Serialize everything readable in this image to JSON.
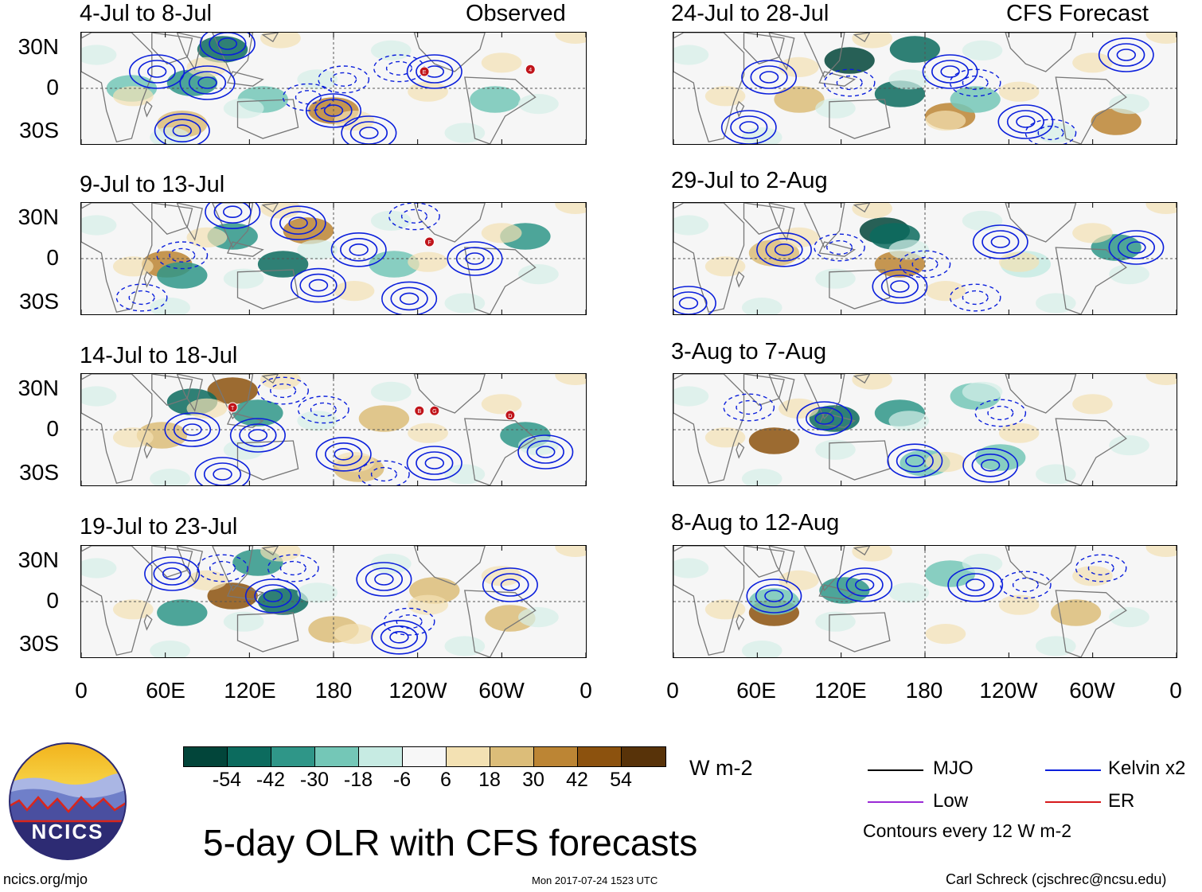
{
  "panels_left": [
    {
      "title": "4-Jul to 8-Jul",
      "tag": "Observed"
    },
    {
      "title": "9-Jul to 13-Jul",
      "tag": ""
    },
    {
      "title": "14-Jul to 18-Jul",
      "tag": ""
    },
    {
      "title": "19-Jul to 23-Jul",
      "tag": ""
    }
  ],
  "panels_right": [
    {
      "title": "24-Jul to 28-Jul",
      "tag": "CFS Forecast"
    },
    {
      "title": "29-Jul to 2-Aug",
      "tag": ""
    },
    {
      "title": "3-Aug to 7-Aug",
      "tag": ""
    },
    {
      "title": "8-Aug to 12-Aug",
      "tag": ""
    }
  ],
  "y_ticks": [
    "30N",
    "0",
    "30S"
  ],
  "x_ticks": [
    "0",
    "60E",
    "120E",
    "180",
    "120W",
    "60W",
    "0"
  ],
  "storm_markers": [
    {
      "panel": 0,
      "letter": "E"
    },
    {
      "panel": 0,
      "letter": "4"
    },
    {
      "panel": 1,
      "letter": "F"
    },
    {
      "panel": 2,
      "letter": "T"
    },
    {
      "panel": 2,
      "letter": "B"
    },
    {
      "panel": 2,
      "letter": "G"
    },
    {
      "panel": 2,
      "letter": "D"
    }
  ],
  "colorbar": {
    "colors": [
      "#02453a",
      "#0c6b5e",
      "#2f9688",
      "#74c7b7",
      "#c7ebe3",
      "#f7f7f7",
      "#f3e1b3",
      "#dcbd79",
      "#bc8534",
      "#8c520e",
      "#583309"
    ],
    "labels": [
      "-54",
      "-42",
      "-30",
      "-18",
      "-6",
      "6",
      "18",
      "30",
      "42",
      "54"
    ],
    "units": "W m-2"
  },
  "legend": {
    "items": [
      {
        "label": "MJO",
        "color": "#000000"
      },
      {
        "label": "Kelvin x2",
        "color": "#0b1fdc"
      },
      {
        "label": "Low",
        "color": "#9a2bd6"
      },
      {
        "label": "ER",
        "color": "#d7191c"
      }
    ],
    "note": "Contours every 12 W m-2"
  },
  "logo_text": "NCICS",
  "main_title": "5-day OLR with CFS forecasts",
  "footer_left": "ncics.org/mjo",
  "footer_center": "Mon 2017-07-24 1523 UTC",
  "footer_right": "Carl Schreck (cjschrec@ncsu.edu)"
}
